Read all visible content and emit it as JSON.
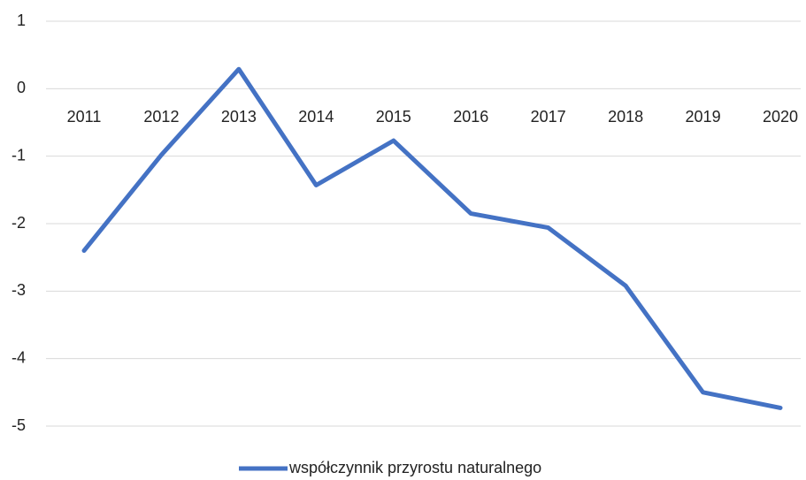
{
  "chart_data": {
    "type": "line",
    "categories": [
      "2011",
      "2012",
      "2013",
      "2014",
      "2015",
      "2016",
      "2017",
      "2018",
      "2019",
      "2020"
    ],
    "series": [
      {
        "name": "współczynnik przyrostu naturalnego",
        "color": "#4472c4",
        "values": [
          -2.4,
          -0.98,
          0.29,
          -1.43,
          -0.77,
          -1.85,
          -2.06,
          -2.92,
          -4.5,
          -4.73
        ]
      }
    ],
    "ylim": [
      -5,
      1
    ],
    "yticks": [
      -5,
      -4,
      -3,
      -2,
      -1,
      0,
      1
    ],
    "grid": true,
    "legend": "bottom"
  }
}
